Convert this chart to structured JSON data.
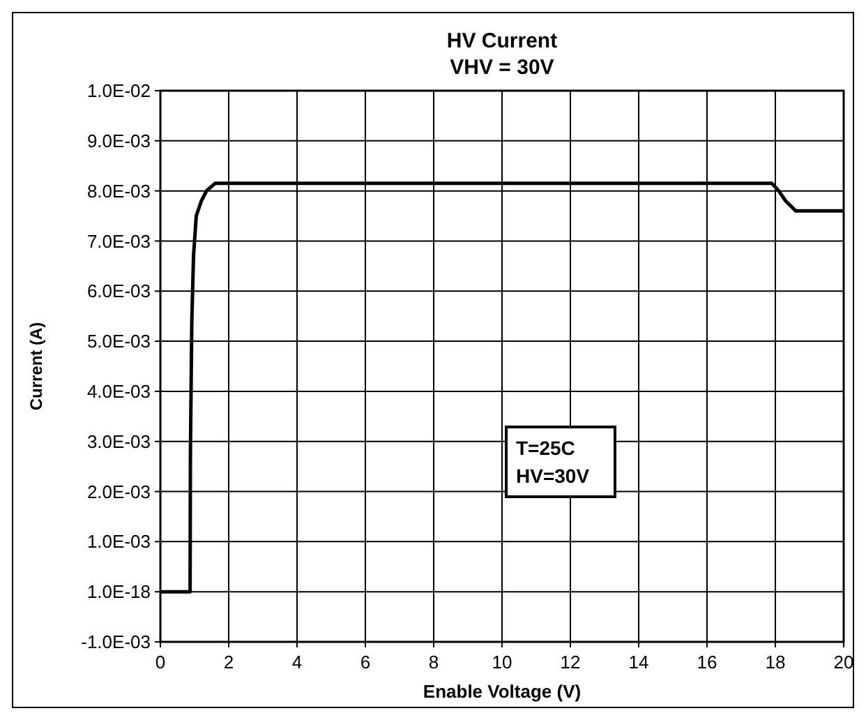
{
  "chart_data": {
    "type": "line",
    "title": "HV Current",
    "subtitle": "VHV = 30V",
    "xlabel": "Enable Voltage (V)",
    "ylabel": "Current (A)",
    "series": [
      {
        "color": "#000000",
        "x": [
          0,
          0.87,
          0.88,
          0.92,
          0.97,
          1.05,
          1.2,
          1.35,
          1.6,
          17.9,
          18.1,
          18.3,
          18.6,
          20
        ],
        "values": [
          0,
          0,
          0.0028,
          0.0054,
          0.0067,
          0.0075,
          0.0078,
          0.008,
          0.00815,
          0.00815,
          0.008,
          0.0078,
          0.0076,
          0.0076
        ]
      }
    ],
    "xlim": [
      0,
      20
    ],
    "xticks": [
      0,
      2,
      4,
      6,
      8,
      10,
      12,
      14,
      16,
      18,
      20
    ],
    "ylim": [
      -0.001,
      0.01
    ],
    "yticks": [
      {
        "value": -0.001,
        "label": "-1.0E-03"
      },
      {
        "value": 0,
        "label": "1.0E-18"
      },
      {
        "value": 0.001,
        "label": "1.0E-03"
      },
      {
        "value": 0.002,
        "label": "2.0E-03"
      },
      {
        "value": 0.003,
        "label": "3.0E-03"
      },
      {
        "value": 0.004,
        "label": "4.0E-03"
      },
      {
        "value": 0.005,
        "label": "5.0E-03"
      },
      {
        "value": 0.006,
        "label": "6.0E-03"
      },
      {
        "value": 0.007,
        "label": "7.0E-03"
      },
      {
        "value": 0.008,
        "label": "8.0E-03"
      },
      {
        "value": 0.009,
        "label": "9.0E-03"
      },
      {
        "value": 0.01,
        "label": "1.0E-02"
      }
    ],
    "grid": true,
    "marker": "none",
    "line_style": "solid",
    "annotations": [
      "T=25C\nHV=30V"
    ]
  }
}
